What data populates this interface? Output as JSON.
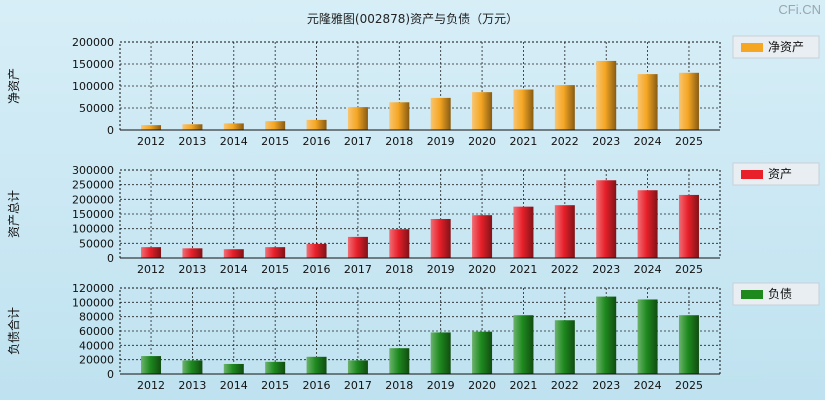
{
  "title": "元隆雅图(002878)资产与负债（万元）",
  "watermark": "CFi.CN",
  "chart_data": [
    {
      "type": "bar",
      "ylabel": "净资产",
      "legend": "净资产",
      "color": "#f5a623",
      "ylim": [
        0,
        200000
      ],
      "yticks": [
        0,
        50000,
        100000,
        150000,
        200000
      ],
      "categories": [
        "2012",
        "2013",
        "2014",
        "2015",
        "2016",
        "2017",
        "2018",
        "2019",
        "2020",
        "2021",
        "2022",
        "2023",
        "2024",
        "2025"
      ],
      "values": [
        11000,
        13000,
        15000,
        20000,
        23000,
        52000,
        63000,
        73000,
        86000,
        92000,
        102000,
        157000,
        127000,
        130000
      ]
    },
    {
      "type": "bar",
      "ylabel": "资产总计",
      "legend": "资产",
      "color": "#e8202a",
      "ylim": [
        0,
        300000
      ],
      "yticks": [
        0,
        50000,
        100000,
        150000,
        200000,
        250000,
        300000
      ],
      "categories": [
        "2012",
        "2013",
        "2014",
        "2015",
        "2016",
        "2017",
        "2018",
        "2019",
        "2020",
        "2021",
        "2022",
        "2023",
        "2024",
        "2025"
      ],
      "values": [
        37000,
        33000,
        30000,
        37000,
        48000,
        72000,
        98000,
        133000,
        146000,
        175000,
        180000,
        265000,
        231000,
        215000
      ]
    },
    {
      "type": "bar",
      "ylabel": "负债合计",
      "legend": "负债",
      "color": "#1e8a1e",
      "ylim": [
        0,
        120000
      ],
      "yticks": [
        0,
        20000,
        40000,
        60000,
        80000,
        100000,
        120000
      ],
      "categories": [
        "2012",
        "2013",
        "2014",
        "2015",
        "2016",
        "2017",
        "2018",
        "2019",
        "2020",
        "2021",
        "2022",
        "2023",
        "2024",
        "2025"
      ],
      "values": [
        25000,
        19000,
        14000,
        17000,
        24000,
        19000,
        36000,
        58000,
        59000,
        82000,
        75000,
        108000,
        104000,
        82000
      ]
    }
  ]
}
